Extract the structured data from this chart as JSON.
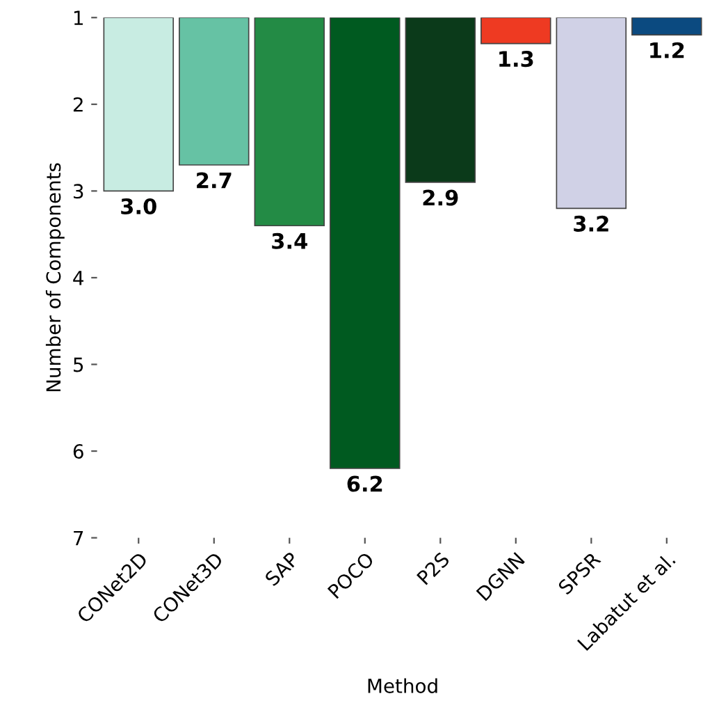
{
  "chart_data": {
    "type": "bar",
    "xlabel": "Method",
    "ylabel": "Number of Components",
    "categories": [
      "CONet2D",
      "CONet3D",
      "SAP",
      "POCO",
      "P2S",
      "DGNN",
      "SPSR",
      "Labatut et al."
    ],
    "values": [
      3.0,
      2.7,
      3.4,
      6.2,
      2.9,
      1.3,
      3.2,
      1.2
    ],
    "colors": [
      "#c8ece2",
      "#66c2a4",
      "#238b45",
      "#005a20",
      "#0b3a1a",
      "#ee3a22",
      "#d0d1e6",
      "#0b4a80"
    ],
    "value_labels": [
      "3.0",
      "2.7",
      "3.4",
      "6.2",
      "2.9",
      "1.3",
      "3.2",
      "1.2"
    ],
    "ylim": [
      7,
      1
    ],
    "yticks": [
      1,
      2,
      3,
      4,
      5,
      6,
      7
    ],
    "grid": false,
    "legend": false
  }
}
